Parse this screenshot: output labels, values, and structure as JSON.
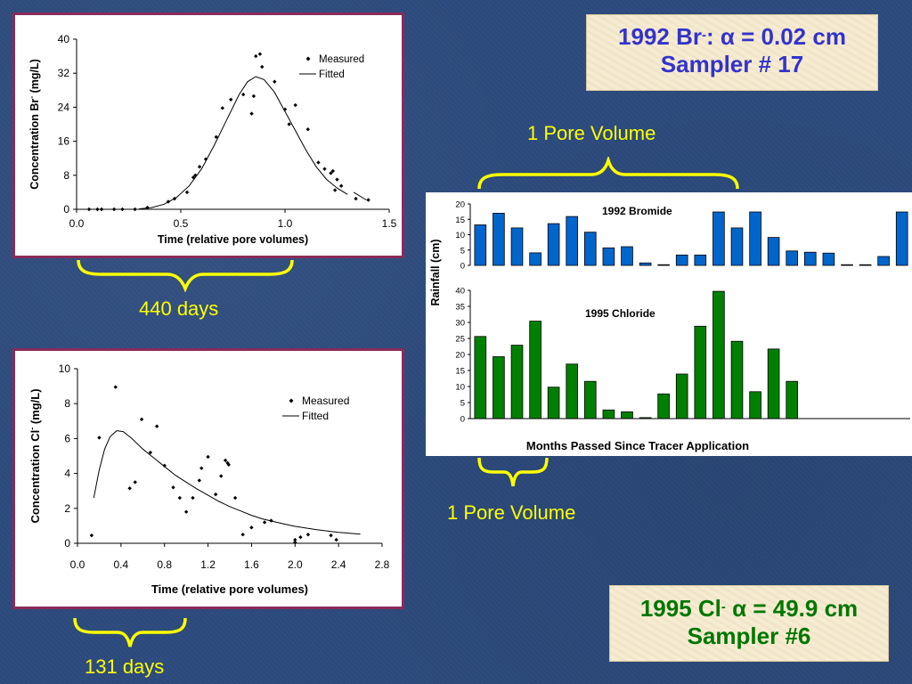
{
  "callouts": {
    "br": {
      "prefix": "1992 Br",
      "sup": "-",
      "colon": ":",
      "alpha": "α",
      "value": " = 0.02 cm",
      "line2": "Sampler # 17"
    },
    "cl": {
      "prefix": "1995 Cl",
      "sup": "-",
      "alpha": " α",
      "value": " = 49.9 cm",
      "line2": "Sampler #6"
    }
  },
  "labels": {
    "pore_top": "1 Pore Volume",
    "pore_bottom": "1 Pore Volume",
    "days_440": "440 days",
    "days_131": "131 days"
  },
  "colors": {
    "bromide_bars": "#0066cc",
    "chloride_bars": "#008000",
    "brace": "#ffff00",
    "panel_border": "#8b2a5a"
  },
  "chart_data": [
    {
      "id": "bromide",
      "type": "scatter",
      "xlabel": "Time (relative pore volumes)",
      "ylabel_main": "Concentration Br",
      "ylabel_sup": "-",
      "ylabel_unit": " (mg/L)",
      "xlim": [
        0,
        1.5
      ],
      "ylim": [
        0,
        40
      ],
      "xticks": [
        0,
        0.5,
        1,
        1.5
      ],
      "xtick_labels": [
        "0.0",
        "0.5",
        "1.0",
        "1.5"
      ],
      "yticks": [
        0,
        8,
        16,
        24,
        32,
        40
      ],
      "legend": [
        "Measured",
        "Fitted"
      ],
      "legend_position": "top-right",
      "measured": [
        [
          0.06,
          0
        ],
        [
          0.1,
          0
        ],
        [
          0.12,
          0
        ],
        [
          0.18,
          0
        ],
        [
          0.22,
          0
        ],
        [
          0.28,
          0
        ],
        [
          0.34,
          0.4
        ],
        [
          0.44,
          1.8
        ],
        [
          0.47,
          2.5
        ],
        [
          0.53,
          4
        ],
        [
          0.56,
          7.5
        ],
        [
          0.57,
          8
        ],
        [
          0.59,
          10
        ],
        [
          0.62,
          11.8
        ],
        [
          0.67,
          17
        ],
        [
          0.7,
          23.8
        ],
        [
          0.74,
          25.8
        ],
        [
          0.8,
          27
        ],
        [
          0.84,
          22.5
        ],
        [
          0.85,
          26.6
        ],
        [
          0.86,
          36
        ],
        [
          0.88,
          36.5
        ],
        [
          0.89,
          33.5
        ],
        [
          0.95,
          30
        ],
        [
          1.0,
          23.5
        ],
        [
          1.02,
          20
        ],
        [
          1.05,
          24.5
        ],
        [
          1.11,
          18.8
        ],
        [
          1.16,
          11
        ],
        [
          1.19,
          9.5
        ],
        [
          1.22,
          8.5
        ],
        [
          1.23,
          9
        ],
        [
          1.24,
          4.5
        ],
        [
          1.25,
          7
        ],
        [
          1.27,
          5.5
        ],
        [
          1.34,
          2.5
        ],
        [
          1.4,
          2.2
        ]
      ],
      "fitted": [
        [
          0.3,
          0.1
        ],
        [
          0.36,
          0.4
        ],
        [
          0.42,
          1.2
        ],
        [
          0.48,
          2.8
        ],
        [
          0.54,
          5.5
        ],
        [
          0.6,
          9.5
        ],
        [
          0.66,
          15
        ],
        [
          0.72,
          21
        ],
        [
          0.78,
          27
        ],
        [
          0.82,
          30
        ],
        [
          0.86,
          31.2
        ],
        [
          0.9,
          30.5
        ],
        [
          0.95,
          27.5
        ],
        [
          1.0,
          23
        ],
        [
          1.05,
          18.5
        ],
        [
          1.1,
          14
        ],
        [
          1.15,
          10
        ],
        [
          1.2,
          7
        ],
        [
          1.25,
          5
        ],
        [
          1.3,
          3.5
        ]
      ],
      "fitted_tail": [
        [
          1.33,
          4
        ],
        [
          1.39,
          2.2
        ]
      ]
    },
    {
      "id": "chloride",
      "type": "scatter",
      "xlabel": "Time (relative pore volumes)",
      "ylabel_main": "Concentration Cl",
      "ylabel_sup": "-",
      "ylabel_unit": " (mg/L)",
      "xlim": [
        0,
        2.8
      ],
      "ylim": [
        0,
        10
      ],
      "xticks": [
        0,
        0.4,
        0.8,
        1.2,
        1.6,
        2.0,
        2.4,
        2.8
      ],
      "xtick_labels": [
        "0.0",
        "0.4",
        "0.8",
        "1.2",
        "1.6",
        "2.0",
        "2.4",
        "2.8"
      ],
      "yticks": [
        0,
        2,
        4,
        6,
        8,
        10
      ],
      "legend": [
        "Measured",
        "Fitted"
      ],
      "legend_position": "top-right",
      "measured": [
        [
          0.13,
          0.45
        ],
        [
          0.2,
          6.05
        ],
        [
          0.35,
          8.95
        ],
        [
          0.48,
          3.15
        ],
        [
          0.53,
          3.5
        ],
        [
          0.59,
          7.1
        ],
        [
          0.67,
          5.2
        ],
        [
          0.73,
          6.7
        ],
        [
          0.8,
          4.45
        ],
        [
          0.88,
          3.2
        ],
        [
          0.94,
          2.6
        ],
        [
          1.0,
          1.8
        ],
        [
          1.06,
          2.6
        ],
        [
          1.12,
          3.6
        ],
        [
          1.14,
          4.3
        ],
        [
          1.2,
          4.95
        ],
        [
          1.27,
          2.8
        ],
        [
          1.32,
          3.85
        ],
        [
          1.36,
          4.75
        ],
        [
          1.38,
          4.6
        ],
        [
          1.39,
          4.5
        ],
        [
          1.45,
          2.6
        ],
        [
          1.52,
          0.5
        ],
        [
          1.6,
          0.9
        ],
        [
          1.72,
          1.2
        ],
        [
          1.78,
          1.3
        ],
        [
          2.0,
          0.05
        ],
        [
          2.0,
          0.2
        ],
        [
          2.05,
          0.35
        ],
        [
          2.12,
          0.5
        ],
        [
          2.33,
          0.45
        ],
        [
          2.38,
          0.2
        ]
      ],
      "fitted": [
        [
          0.15,
          2.6
        ],
        [
          0.2,
          4.2
        ],
        [
          0.25,
          5.4
        ],
        [
          0.3,
          6.1
        ],
        [
          0.36,
          6.45
        ],
        [
          0.42,
          6.4
        ],
        [
          0.5,
          6.0
        ],
        [
          0.6,
          5.4
        ],
        [
          0.7,
          4.9
        ],
        [
          0.8,
          4.4
        ],
        [
          0.9,
          3.9
        ],
        [
          1.0,
          3.5
        ],
        [
          1.1,
          3.1
        ],
        [
          1.2,
          2.75
        ],
        [
          1.3,
          2.4
        ],
        [
          1.4,
          2.1
        ],
        [
          1.5,
          1.85
        ],
        [
          1.6,
          1.6
        ],
        [
          1.7,
          1.4
        ],
        [
          1.8,
          1.25
        ],
        [
          1.9,
          1.1
        ],
        [
          2.0,
          0.97
        ],
        [
          2.1,
          0.87
        ],
        [
          2.2,
          0.78
        ],
        [
          2.3,
          0.7
        ],
        [
          2.4,
          0.63
        ],
        [
          2.5,
          0.57
        ],
        [
          2.6,
          0.52
        ]
      ]
    },
    {
      "id": "rainfall",
      "type": "bar",
      "ylabel": "Rainfall (cm)",
      "xlabel": "Months Passed Since Tracer Application",
      "panels": [
        {
          "name": "1992 Bromide",
          "ylim": [
            0,
            20
          ],
          "yticks": [
            0,
            5,
            10,
            15,
            20
          ],
          "values": [
            13.2,
            17,
            12.2,
            4.1,
            13.6,
            15.9,
            10.8,
            5.7,
            6.1,
            0.8,
            0,
            3.4,
            3.4,
            17.4,
            12.2,
            17.4,
            9.1,
            4.7,
            4.3,
            4.0,
            0.1,
            0.1,
            2.9,
            17.4
          ]
        },
        {
          "name": "1995 Chloride",
          "ylim": [
            0,
            40
          ],
          "yticks": [
            0,
            5,
            10,
            15,
            20,
            25,
            30,
            35,
            40
          ],
          "values": [
            25.6,
            19.3,
            22.9,
            30.4,
            9.8,
            17,
            11.6,
            2.7,
            2.1,
            0.3,
            7.7,
            13.9,
            28.8,
            39.7,
            24.1,
            8.4,
            21.7,
            11.6
          ]
        }
      ]
    }
  ]
}
